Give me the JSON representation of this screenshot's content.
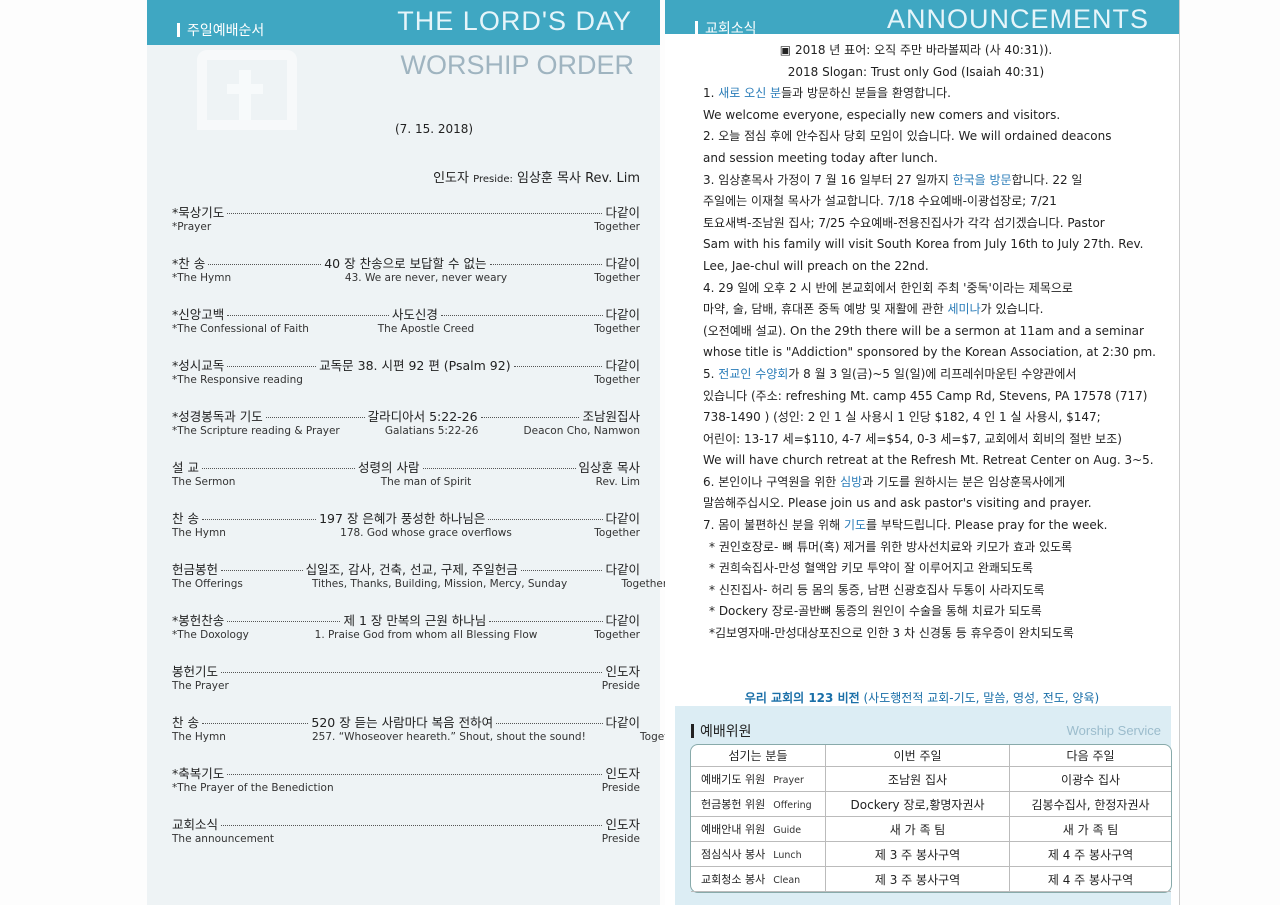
{
  "colors": {
    "band": "#3fa7c2",
    "highlight": "#2a7cb8",
    "left_bg": "#eef3f5",
    "service_bg": "#dcedf4"
  },
  "left": {
    "header_ko": "주일예배순서",
    "header_en": "THE LORD'S DAY",
    "sub_en": "WORSHIP ORDER",
    "icon": "cross-icon",
    "date": "(7. 15. 2018)",
    "preside": {
      "label": "인도자",
      "label_en": "Preside:",
      "name": "임상훈  목사 Rev. Lim"
    },
    "order": [
      {
        "ko": "*묵상기도",
        "mid": "",
        "right": "다같이",
        "en": "*Prayer",
        "mid_en": "",
        "right_en": "Together"
      },
      {
        "ko": "*찬    송",
        "mid": "40 장  찬송으로  보답할  수  없는",
        "right": "다같이",
        "en": "*The Hymn",
        "mid_en": "43. We are never, never weary",
        "right_en": "Together"
      },
      {
        "ko": "*신앙고백",
        "mid": "사도신경",
        "right": "다같이",
        "en": "*The Confessional of Faith",
        "mid_en": "The Apostle Creed",
        "right_en": "Together"
      },
      {
        "ko": "*성시교독",
        "mid": "교독문  38.  시편  92 편  (Psalm 92)",
        "right": "다같이",
        "en": "*The Responsive reading",
        "mid_en": "",
        "right_en": "Together"
      },
      {
        "ko": "*성경봉독과  기도",
        "mid": "갈라디아서 5:22-26",
        "right": "조남원집사",
        "en": "*The Scripture reading & Prayer",
        "mid_en": "Galatians 5:22-26",
        "right_en": "Deacon Cho, Namwon"
      },
      {
        "ko": "설    교",
        "mid": "성령의  사람",
        "right": "임상훈  목사",
        "en": "The Sermon",
        "mid_en": "The man of Spirit",
        "right_en": "Rev. Lim"
      },
      {
        "ko": "찬    송",
        "mid": "197 장  은혜가  풍성한  하나님은",
        "right": "다같이",
        "en": "The Hymn",
        "mid_en": "178. God whose grace overflows",
        "right_en": "Together"
      },
      {
        "ko": "헌금봉헌",
        "mid": "십일조,  감사,  건축,  선교,  구제,  주일헌금",
        "right": "다같이",
        "en": "The Offerings",
        "mid_en": "Tithes, Thanks, Building, Mission, Mercy, Sunday",
        "right_en": "Together"
      },
      {
        "ko": "*봉헌찬송",
        "mid": "제  1  장  만복의  근원  하나님",
        "right": "다같이",
        "en": "*The Doxology",
        "mid_en": "1. Praise God from whom all Blessing Flow",
        "right_en": "Together"
      },
      {
        "ko": "봉헌기도",
        "mid": "",
        "right": "인도자",
        "en": "The Prayer",
        "mid_en": "",
        "right_en": "Preside"
      },
      {
        "ko": "찬    송",
        "mid": "520 장  듣는  사람마다  복음  전하여",
        "right": "다같이",
        "en": "The Hymn",
        "mid_en": "257. “Whoseover heareth.” Shout, shout the sound!",
        "right_en": "Together"
      },
      {
        "ko": "*축복기도",
        "mid": "",
        "right": "인도자",
        "en": "*The Prayer of the Benediction",
        "mid_en": "",
        "right_en": "Preside"
      },
      {
        "ko": "교회소식",
        "mid": "",
        "right": "인도자",
        "en": "The announcement",
        "mid_en": "",
        "right_en": "Preside"
      }
    ]
  },
  "right": {
    "header_ko": "교회소식",
    "header_en": "ANNOUNCEMENTS",
    "lines": [
      {
        "cls": "center",
        "segs": [
          {
            "t": "▣ 2018 년  표어:  오직  주만  바라볼찌라  (사  40:31))."
          }
        ]
      },
      {
        "cls": "center",
        "segs": [
          {
            "t": "2018 Slogan: Trust only God (Isaiah 40:31)"
          }
        ]
      },
      {
        "segs": [
          {
            "t": "1. "
          },
          {
            "t": "새로  오신  분",
            "hl": true
          },
          {
            "t": "들과  방문하신  분들을  "
          },
          {
            "t": "환영합니다."
          }
        ]
      },
      {
        "segs": [
          {
            "t": "We welcome everyone, especially new comers and visitors."
          }
        ]
      },
      {
        "segs": [
          {
            "t": "2. 오늘  점심  후에  안수집사  당회  모임이  있습니다. We will ordained deacons"
          }
        ]
      },
      {
        "segs": [
          {
            "t": "and session meeting today after lunch."
          }
        ]
      },
      {
        "segs": [
          {
            "t": "3. 임상훈목사  가정이  7 월  16 일부터  27 일까지  "
          },
          {
            "t": "한국을  방문",
            "hl": true
          },
          {
            "t": "합니다. 22 일"
          }
        ]
      },
      {
        "segs": [
          {
            "t": "주일에는  이재철  목사가  설교합니다. 7/18  수요예배-이광섭장로; 7/21"
          }
        ]
      },
      {
        "segs": [
          {
            "t": "토요새벽-조남원  집사; 7/25 수요예배-전용진집사가  각각  섬기겠습니다. Pastor"
          }
        ]
      },
      {
        "segs": [
          {
            "t": "Sam with his family will visit South Korea from July 16th to July 27th. Rev."
          }
        ]
      },
      {
        "segs": [
          {
            "t": "Lee, Jae-chul will preach on the 22nd."
          }
        ]
      },
      {
        "segs": [
          {
            "t": "4. 29 일에  오후  2 시  반에  본교회에서  한인회  주최  '중독'이라는  제목으로"
          }
        ]
      },
      {
        "segs": [
          {
            "t": "마약,  술,  담배,  휴대폰  중독  예방  및  재활에  관한  "
          },
          {
            "t": "세미나",
            "hl": true
          },
          {
            "t": "가  있습니다."
          }
        ]
      },
      {
        "segs": [
          {
            "t": "(오전예배  설교). On the 29th there will be a sermon at 11am and a seminar"
          }
        ]
      },
      {
        "segs": [
          {
            "t": "whose title is \"Addiction\" sponsored by the Korean Association, at 2:30 pm."
          }
        ]
      },
      {
        "segs": [
          {
            "t": "5. "
          },
          {
            "t": "전교인  수양회",
            "hl": true
          },
          {
            "t": "가  8 월  3 일(금)~5 일(일)에  리프레쉬마운틴  수양관에서"
          }
        ]
      },
      {
        "segs": [
          {
            "t": "있습니다  (주소: refreshing Mt. camp 455 Camp Rd, Stevens, PA 17578 (717)"
          }
        ]
      },
      {
        "segs": [
          {
            "t": "738-1490 ) (성인: 2 인 1 실  사용시  1 인당  $182, 4 인  1 실  사용시, $147;"
          }
        ]
      },
      {
        "segs": [
          {
            "t": "어린이: 13-17 세=$110, 4-7 세=$54, 0-3 세=$7,  교회에서  회비의  절반  보조)"
          }
        ]
      },
      {
        "segs": [
          {
            "t": "We will have church retreat at the Refresh Mt. Retreat Center on Aug. 3~5."
          }
        ]
      },
      {
        "segs": [
          {
            "t": "6. 본인이나  구역원을  위한  "
          },
          {
            "t": "심방",
            "hl": true
          },
          {
            "t": "과  기도를  원하시는  분은  임상훈목사에게"
          }
        ]
      },
      {
        "segs": [
          {
            "t": "말씀해주십시오. Please join us and ask pastor's visiting and prayer."
          }
        ]
      },
      {
        "segs": [
          {
            "t": "7. 몸이  불편하신  분을  위해  "
          },
          {
            "t": "기도",
            "hl": true
          },
          {
            "t": "를  부탁드립니다. Please pray for the week."
          }
        ]
      },
      {
        "cls": "ind",
        "segs": [
          {
            "t": "*  권인호장로-  뼈  튜머(혹)  제거를  위한  방사선치료와  키모가  효과  있도록"
          }
        ]
      },
      {
        "cls": "ind",
        "segs": [
          {
            "t": "*  권희숙집사-만성  혈액암  키모  투약이  잘  이루어지고  완쾌되도록"
          }
        ]
      },
      {
        "cls": "ind",
        "segs": [
          {
            "t": "*  신진집사-  허리  등  몸의  통증,  남편  신광호집사  두통이  사라지도록"
          }
        ]
      },
      {
        "cls": "ind",
        "segs": [
          {
            "t": "* Dockery 장로-골반뼈  통증의  원인이  수술을  통해  치료가  되도록"
          }
        ]
      },
      {
        "cls": "ind",
        "segs": [
          {
            "t": "*김보영자매-만성대상포진으로  인한 3 차  신경통  등  휴우증이  완치되도록"
          }
        ]
      }
    ],
    "vision": {
      "bold": "우리  교회의  123  비전",
      "rest": "(사도행전적  교회-기도,  말씀,  영성,  전도,  양육)"
    },
    "service": {
      "title_ko": "예배위원",
      "title_en": "Worship Service",
      "headers": [
        "섬기는 분들",
        "이번 주일",
        "다음 주일"
      ],
      "rows": [
        {
          "role": "예배기도 위원",
          "role_en": "Prayer",
          "this": "조남원  집사",
          "next": "이광수  집사"
        },
        {
          "role": "헌금봉헌 위원",
          "role_en": "Offering",
          "this": "Dockery 장로,황명자권사",
          "next": "김봉수집사,  한정자권사"
        },
        {
          "role": "예배안내 위원",
          "role_en": "Guide",
          "this": "새  가  족  팀",
          "next": "새  가  족  팀"
        },
        {
          "role": "점심식사 봉사",
          "role_en": "Lunch",
          "this": "제  3  주  봉사구역",
          "next": "제  4 주  봉사구역"
        },
        {
          "role": "교회청소 봉사",
          "role_en": "Clean",
          "this": "제  3  주  봉사구역",
          "next": "제  4  주  봉사구역"
        }
      ]
    }
  }
}
